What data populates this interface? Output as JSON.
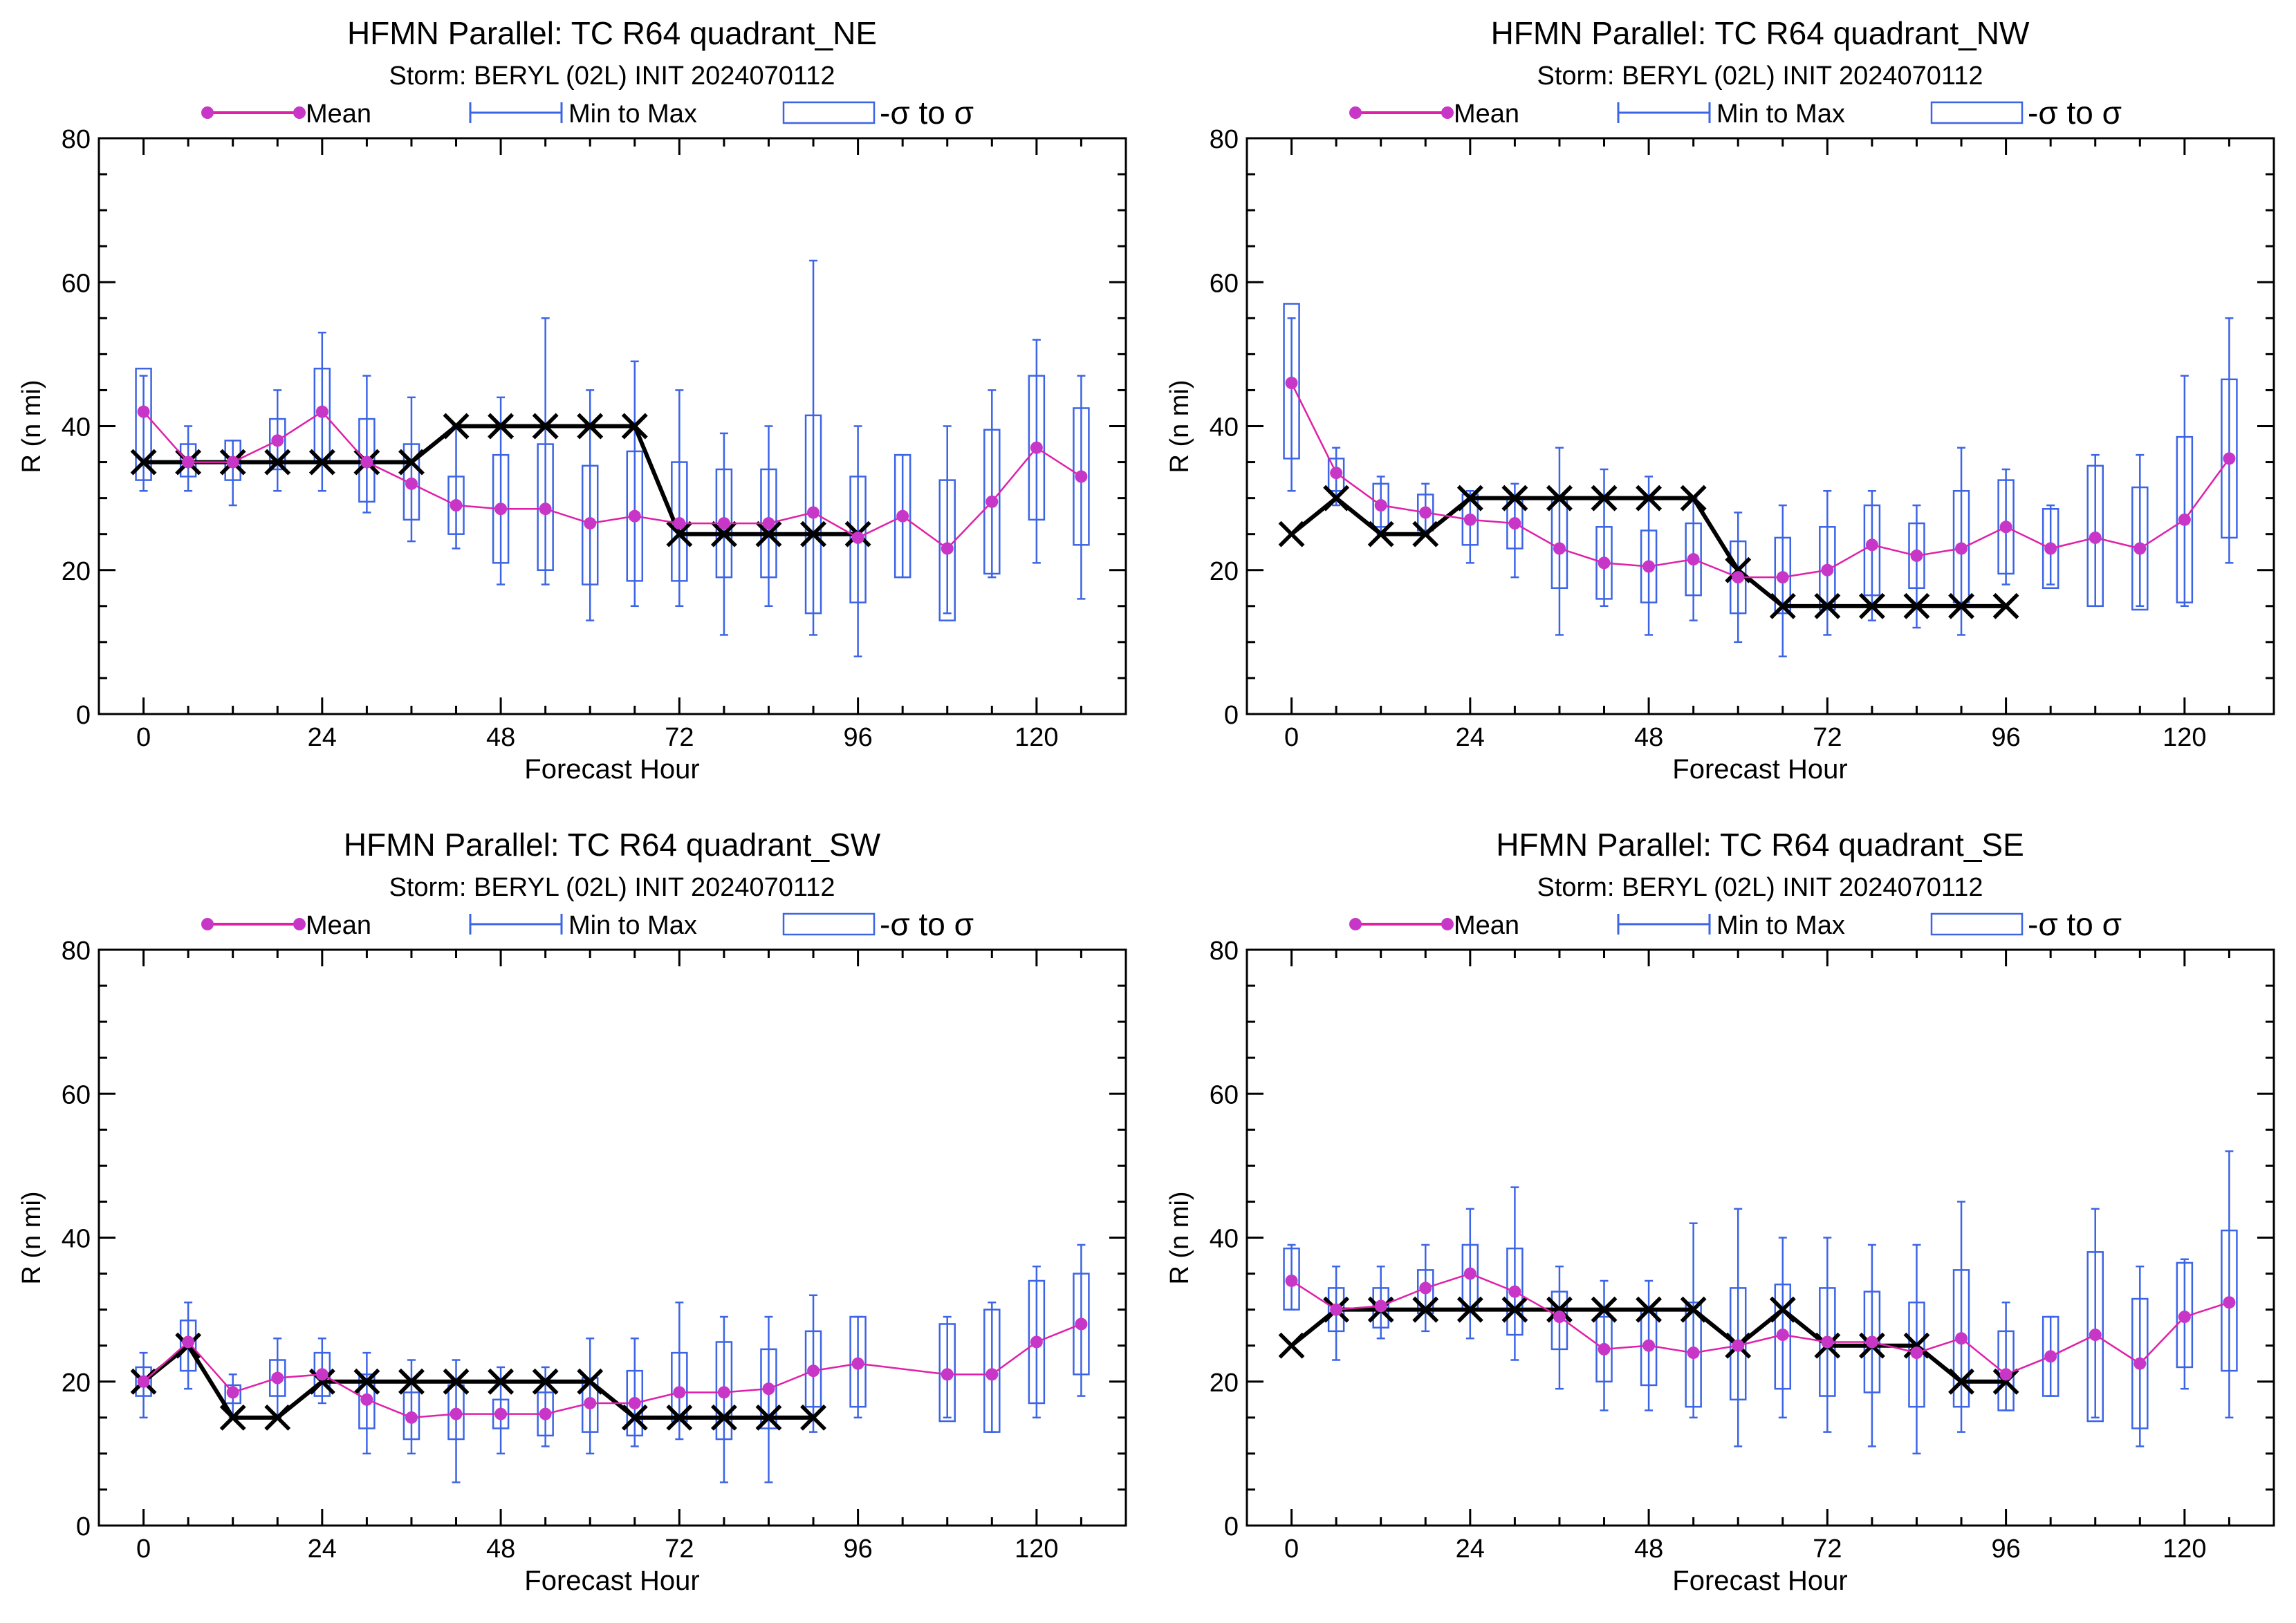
{
  "charts": [
    {
      "title": "HFMN Parallel: TC  R64 quadrant_NE",
      "subtitle": "Storm: BERYL (02L) INIT 2024070112"
    },
    {
      "title": "HFMN Parallel: TC  R64 quadrant_NW",
      "subtitle": "Storm: BERYL (02L) INIT 2024070112"
    },
    {
      "title": "HFMN Parallel: TC  R64 quadrant_SW",
      "subtitle": "Storm: BERYL (02L) INIT 2024070112"
    },
    {
      "title": "HFMN Parallel: TC  R64 quadrant_SE",
      "subtitle": "Storm: BERYL (02L) INIT 2024070112"
    }
  ],
  "legend": {
    "mean": "Mean",
    "minmax": "Min to Max",
    "sigma": "-σ to σ"
  },
  "axis_labels": {
    "x": "Forecast Hour",
    "y": "R (n mi)"
  },
  "x_ticks": [
    "0",
    "24",
    "48",
    "72",
    "96",
    "120"
  ],
  "y_ticks": [
    "0",
    "20",
    "40",
    "60",
    "80"
  ],
  "colors": {
    "mean": "#e020a8",
    "mean_marker": "#c836c8",
    "box": "#3c64e6",
    "observed": "#000000",
    "axes": "#000000"
  },
  "chart_data": [
    {
      "type": "box",
      "title": "HFMN Parallel: TC  R64 quadrant_NE",
      "subtitle": "Storm: BERYL (02L) INIT 2024070112",
      "xlabel": "Forecast Hour",
      "ylabel": "R (n mi)",
      "xlim": [
        -6,
        132
      ],
      "ylim": [
        0,
        80
      ],
      "grid": false,
      "legend_position": "top",
      "x": [
        0,
        6,
        12,
        18,
        24,
        30,
        36,
        42,
        48,
        54,
        60,
        66,
        72,
        78,
        84,
        90,
        96,
        102,
        108,
        114,
        120,
        126
      ],
      "mean": [
        42,
        35,
        35,
        38,
        42,
        35,
        32,
        29,
        28.5,
        28.5,
        26.5,
        27.5,
        26.5,
        26.5,
        26.5,
        28,
        24.5,
        27.5,
        23,
        29.5,
        37,
        33
      ],
      "min": [
        31,
        31,
        29,
        31,
        31,
        28,
        24,
        23,
        18,
        18,
        13,
        15,
        15,
        11,
        15,
        11,
        8,
        19,
        14,
        19,
        21,
        16
      ],
      "max": [
        47,
        40,
        38,
        45,
        53,
        47,
        44,
        40,
        44,
        55,
        45,
        49,
        45,
        39,
        40,
        63,
        40,
        36,
        40,
        45,
        52,
        47
      ],
      "sigma_low": [
        32.5,
        33,
        32.5,
        34,
        35,
        29.5,
        27,
        25,
        21,
        20,
        18,
        18.5,
        18.5,
        19,
        19,
        14,
        15.5,
        19,
        13,
        19.5,
        27,
        23.5
      ],
      "sigma_high": [
        48,
        37.5,
        38,
        41,
        48,
        41,
        37.5,
        33,
        36,
        37.5,
        34.5,
        36.5,
        35,
        34,
        34,
        41.5,
        33,
        36,
        32.5,
        39.5,
        47,
        42.5
      ],
      "observed_x": [
        0,
        6,
        12,
        18,
        24,
        30,
        36,
        42,
        48,
        54,
        60,
        66,
        72,
        78,
        84,
        90,
        96
      ],
      "observed": [
        35,
        35,
        35,
        35,
        35,
        35,
        35,
        40,
        40,
        40,
        40,
        40,
        25,
        25,
        25,
        25,
        25
      ]
    },
    {
      "type": "box",
      "title": "HFMN Parallel: TC  R64 quadrant_NW",
      "subtitle": "Storm: BERYL (02L) INIT 2024070112",
      "xlabel": "Forecast Hour",
      "ylabel": "R (n mi)",
      "xlim": [
        -6,
        132
      ],
      "ylim": [
        0,
        80
      ],
      "grid": false,
      "legend_position": "top",
      "x": [
        0,
        6,
        12,
        18,
        24,
        30,
        36,
        42,
        48,
        54,
        60,
        66,
        72,
        78,
        84,
        90,
        96,
        102,
        108,
        114,
        120,
        126
      ],
      "mean": [
        46,
        33.5,
        29,
        28,
        27,
        26.5,
        23,
        21,
        20.5,
        21.5,
        19,
        19,
        20,
        23.5,
        22,
        23,
        26,
        23,
        24.5,
        23,
        27,
        35.5
      ],
      "min": [
        31,
        29,
        25,
        25,
        21,
        19,
        11,
        15,
        11,
        13,
        10,
        8,
        11,
        13,
        12,
        11,
        18,
        18,
        15,
        15,
        15,
        21
      ],
      "max": [
        55,
        37,
        33,
        32,
        31,
        32,
        37,
        34,
        33,
        30,
        28,
        29,
        31,
        31,
        29,
        37,
        34,
        29,
        36,
        36,
        47,
        55
      ],
      "sigma_low": [
        35.5,
        31,
        26,
        25.5,
        23.5,
        23,
        17.5,
        16,
        15.5,
        16.5,
        14,
        14,
        14.5,
        16.5,
        17.5,
        15.5,
        19.5,
        17.5,
        15,
        14.5,
        15.5,
        24.5
      ],
      "sigma_high": [
        57,
        35.5,
        32,
        30.5,
        30.5,
        30,
        30,
        26,
        25.5,
        26.5,
        24,
        24.5,
        26,
        29,
        26.5,
        31,
        32.5,
        28.5,
        34.5,
        31.5,
        38.5,
        46.5
      ],
      "observed_x": [
        0,
        6,
        12,
        18,
        24,
        30,
        36,
        42,
        48,
        54,
        60,
        66,
        72,
        78,
        84,
        90,
        96
      ],
      "observed": [
        25,
        30,
        25,
        25,
        30,
        30,
        30,
        30,
        30,
        30,
        20,
        15,
        15,
        15,
        15,
        15,
        15
      ]
    },
    {
      "type": "box",
      "title": "HFMN Parallel: TC  R64 quadrant_SW",
      "subtitle": "Storm: BERYL (02L) INIT 2024070112",
      "xlabel": "Forecast Hour",
      "ylabel": "R (n mi)",
      "xlim": [
        -6,
        132
      ],
      "ylim": [
        0,
        80
      ],
      "grid": false,
      "legend_position": "top",
      "x": [
        0,
        6,
        12,
        18,
        24,
        30,
        36,
        42,
        48,
        54,
        60,
        66,
        72,
        78,
        84,
        90,
        96,
        108,
        114,
        120,
        126
      ],
      "mean": [
        20,
        25.5,
        18.5,
        20.5,
        21,
        17.5,
        15,
        15.5,
        15.5,
        15.5,
        17,
        17,
        18.5,
        18.5,
        19,
        21.5,
        22.5,
        21,
        21,
        25.5,
        28
      ],
      "min": [
        15,
        19,
        15,
        15,
        17,
        10,
        10,
        6,
        10,
        11,
        10,
        11,
        12,
        6,
        6,
        13,
        15,
        15,
        13,
        15,
        18
      ],
      "max": [
        24,
        31,
        21,
        26,
        26,
        24,
        23,
        23,
        22,
        22,
        26,
        26,
        31,
        29,
        29,
        32,
        29,
        29,
        31,
        36,
        39
      ],
      "sigma_low": [
        18,
        21.5,
        17,
        18,
        18,
        13.5,
        12,
        12,
        13.5,
        12.5,
        13,
        12.5,
        14.5,
        12,
        13.5,
        16.5,
        16.5,
        14.5,
        13,
        17,
        21
      ],
      "sigma_high": [
        22,
        28.5,
        19.5,
        23,
        24,
        21,
        18.5,
        19.5,
        17.5,
        18.5,
        20.5,
        21.5,
        24,
        25.5,
        24.5,
        27,
        29,
        28,
        30,
        34,
        35
      ],
      "observed_x": [
        0,
        6,
        12,
        18,
        24,
        30,
        36,
        42,
        48,
        54,
        60,
        66,
        72,
        78,
        84,
        90
      ],
      "observed": [
        20,
        25,
        15,
        15,
        20,
        20,
        20,
        20,
        20,
        20,
        20,
        15,
        15,
        15,
        15,
        15
      ]
    },
    {
      "type": "box",
      "title": "HFMN Parallel: TC  R64 quadrant_SE",
      "subtitle": "Storm: BERYL (02L) INIT 2024070112",
      "xlabel": "Forecast Hour",
      "ylabel": "R (n mi)",
      "xlim": [
        -6,
        132
      ],
      "ylim": [
        0,
        80
      ],
      "grid": false,
      "legend_position": "top",
      "x": [
        0,
        6,
        12,
        18,
        24,
        30,
        36,
        42,
        48,
        54,
        60,
        66,
        72,
        78,
        84,
        90,
        96,
        102,
        108,
        114,
        120,
        126
      ],
      "mean": [
        34,
        30,
        30.5,
        33,
        35,
        32.5,
        29,
        24.5,
        25,
        24,
        25,
        26.5,
        25.5,
        25.5,
        24,
        26,
        21,
        23.5,
        26.5,
        22.5,
        29,
        31
      ],
      "min": [
        30,
        23,
        26,
        27,
        26,
        23,
        19,
        16,
        16,
        15,
        11,
        15,
        13,
        11,
        10,
        13,
        16,
        18,
        15,
        11,
        19,
        15
      ],
      "max": [
        39,
        36,
        36,
        39,
        44,
        47,
        36,
        34,
        34,
        42,
        44,
        40,
        40,
        39,
        39,
        45,
        31,
        29,
        44,
        36,
        37,
        52
      ],
      "sigma_low": [
        30,
        27,
        27.5,
        29.5,
        30,
        26.5,
        24.5,
        20,
        19.5,
        16.5,
        17.5,
        19,
        18,
        18.5,
        16.5,
        16.5,
        16,
        18,
        14.5,
        13.5,
        22,
        21.5
      ],
      "sigma_high": [
        38.5,
        33,
        33,
        35.5,
        39,
        38.5,
        32.5,
        29,
        30,
        31,
        33,
        33.5,
        33,
        32.5,
        31,
        35.5,
        27,
        29,
        38,
        31.5,
        36.5,
        41
      ],
      "observed_x": [
        0,
        6,
        12,
        18,
        24,
        30,
        36,
        42,
        48,
        54,
        60,
        66,
        72,
        78,
        84,
        90,
        96
      ],
      "observed": [
        25,
        30,
        30,
        30,
        30,
        30,
        30,
        30,
        30,
        30,
        25,
        30,
        25,
        25,
        25,
        20,
        20
      ]
    }
  ]
}
